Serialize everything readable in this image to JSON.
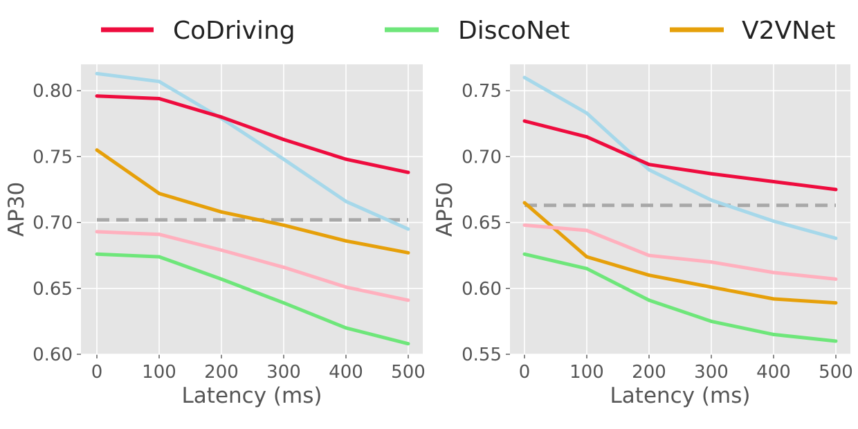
{
  "legend": [
    {
      "label": "CoDriving",
      "color": "#ee0c3e"
    },
    {
      "label": "DiscoNet",
      "color": "#6ee67a"
    },
    {
      "label": "V2VNet",
      "color": "#e6a00a"
    }
  ],
  "chart_data": [
    {
      "type": "line",
      "title": "",
      "xlabel": "Latency (ms)",
      "ylabel": "AP30",
      "x": [
        0,
        100,
        200,
        300,
        400,
        500
      ],
      "xticks": [
        "0",
        "100",
        "200",
        "300",
        "400",
        "500"
      ],
      "yticks": [
        "0.60",
        "0.65",
        "0.70",
        "0.75",
        "0.80"
      ],
      "ylim": [
        0.6,
        0.82
      ],
      "series": [
        {
          "name": "unlabeled-lightblue",
          "color": "#a6d8ea",
          "values": [
            0.813,
            0.807,
            0.779,
            0.748,
            0.716,
            0.695
          ]
        },
        {
          "name": "CoDriving",
          "color": "#ee0c3e",
          "values": [
            0.796,
            0.794,
            0.78,
            0.763,
            0.748,
            0.738
          ]
        },
        {
          "name": "V2VNet",
          "color": "#e6a00a",
          "values": [
            0.755,
            0.722,
            0.708,
            0.698,
            0.686,
            0.677
          ]
        },
        {
          "name": "unlabeled-pink",
          "color": "#ffb0be",
          "values": [
            0.693,
            0.691,
            0.679,
            0.666,
            0.651,
            0.641
          ]
        },
        {
          "name": "DiscoNet",
          "color": "#6ee67a",
          "values": [
            0.676,
            0.674,
            0.657,
            0.639,
            0.62,
            0.608
          ]
        }
      ],
      "reference_line": {
        "value": 0.702,
        "color": "#a8a8a8",
        "style": "dashed"
      }
    },
    {
      "type": "line",
      "title": "",
      "xlabel": "Latency (ms)",
      "ylabel": "AP50",
      "x": [
        0,
        100,
        200,
        300,
        400,
        500
      ],
      "xticks": [
        "0",
        "100",
        "200",
        "300",
        "400",
        "500"
      ],
      "yticks": [
        "0.55",
        "0.60",
        "0.65",
        "0.70",
        "0.75"
      ],
      "ylim": [
        0.55,
        0.77
      ],
      "series": [
        {
          "name": "unlabeled-lightblue",
          "color": "#a6d8ea",
          "values": [
            0.76,
            0.733,
            0.69,
            0.667,
            0.651,
            0.638
          ]
        },
        {
          "name": "CoDriving",
          "color": "#ee0c3e",
          "values": [
            0.727,
            0.715,
            0.694,
            0.687,
            0.681,
            0.675
          ]
        },
        {
          "name": "V2VNet",
          "color": "#e6a00a",
          "values": [
            0.665,
            0.624,
            0.61,
            0.601,
            0.592,
            0.589
          ]
        },
        {
          "name": "unlabeled-pink",
          "color": "#ffb0be",
          "values": [
            0.648,
            0.644,
            0.625,
            0.62,
            0.612,
            0.607
          ]
        },
        {
          "name": "DiscoNet",
          "color": "#6ee67a",
          "values": [
            0.626,
            0.615,
            0.591,
            0.575,
            0.565,
            0.56
          ]
        }
      ],
      "reference_line": {
        "value": 0.663,
        "color": "#a8a8a8",
        "style": "dashed"
      }
    }
  ]
}
